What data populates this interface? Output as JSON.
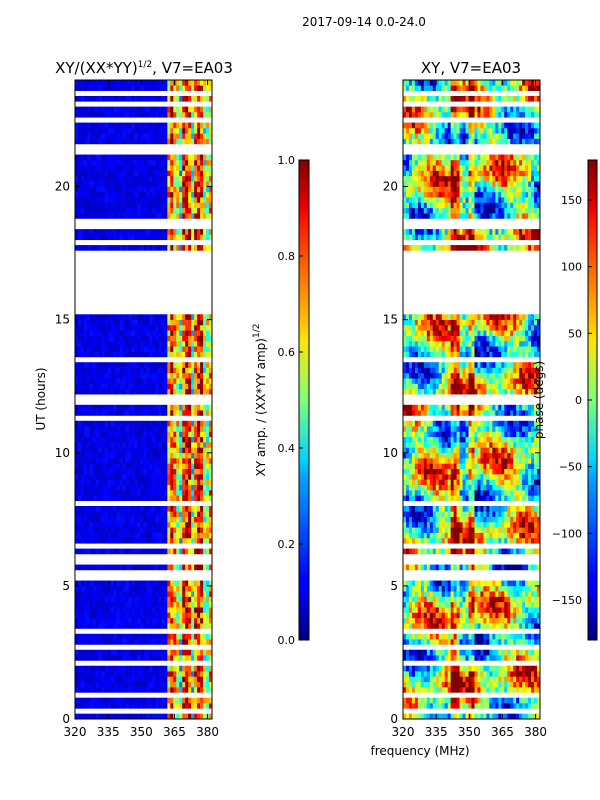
{
  "figure": {
    "suptitle": "2017-09-14 0.0-24.0",
    "xlabel": "frequency (MHz)",
    "ylabel": "UT (hours)"
  },
  "chart_data": [
    {
      "type": "heatmap",
      "title_main": "XY/(XX*YY)",
      "title_sup": "1/2",
      "title_tail": ", V7=EA03",
      "xlim": [
        320,
        382
      ],
      "ylim": [
        0,
        24
      ],
      "x_ticks": [
        320,
        335,
        350,
        365,
        380
      ],
      "y_ticks": [
        0,
        5,
        10,
        15,
        20
      ],
      "variable": "amplitude",
      "description": "Mostly low amplitude (~0.05-0.15) below 360 MHz; high, banded amplitude (0.3-1.0) between 362 and 382 MHz; white rows are flagged times",
      "colorbar": {
        "label_main": "XY amp. / (XX*YY amp)",
        "label_sup": "1/2",
        "range": [
          0.0,
          1.0
        ],
        "ticks": [
          "0.0",
          "0.2",
          "0.4",
          "0.6",
          "0.8",
          "1.0"
        ],
        "tick_values": [
          0.0,
          0.2,
          0.4,
          0.6,
          0.8,
          1.0
        ]
      },
      "flagged_hours": [
        [
          0.2,
          0.35
        ],
        [
          0.75,
          1.1
        ],
        [
          1.55,
          1.62
        ],
        [
          2.1,
          2.16
        ],
        [
          2.7,
          2.76
        ],
        [
          3.3,
          3.36
        ],
        [
          3.55,
          3.6
        ],
        [
          4.2,
          4.26
        ],
        [
          4.6,
          4.66
        ],
        [
          5.2,
          5.55
        ],
        [
          5.85,
          5.92
        ],
        [
          6.1,
          6.2
        ],
        [
          6.5,
          6.58
        ],
        [
          7.0,
          7.08
        ],
        [
          7.8,
          7.86
        ],
        [
          8.0,
          8.25
        ],
        [
          8.6,
          8.66
        ],
        [
          11.3,
          11.36
        ],
        [
          11.85,
          12.0
        ],
        [
          12.1,
          12.16
        ],
        [
          12.35,
          12.45
        ],
        [
          13.5,
          13.56
        ],
        [
          14.8,
          14.86
        ],
        [
          15.25,
          16.6
        ],
        [
          16.7,
          17.6
        ],
        [
          17.75,
          18.1
        ],
        [
          18.4,
          18.8
        ],
        [
          19.0,
          19.06
        ],
        [
          19.6,
          19.66
        ],
        [
          20.8,
          20.86
        ],
        [
          21.0,
          21.1
        ],
        [
          21.3,
          21.36
        ],
        [
          21.5,
          21.56
        ],
        [
          21.75,
          21.81
        ],
        [
          22.4,
          22.55
        ],
        [
          23.1,
          23.16
        ],
        [
          23.5,
          23.56
        ]
      ]
    },
    {
      "type": "heatmap",
      "title": "XY, V7=EA03",
      "xlim": [
        320,
        382
      ],
      "ylim": [
        0,
        24
      ],
      "x_ticks": [
        320,
        335,
        350,
        365,
        380
      ],
      "y_ticks": [
        0,
        5,
        10,
        15,
        20
      ],
      "variable": "phase",
      "description": "Noisy phase (-180 to 180 deg) varying with frequency and time; same flagged rows as amplitude panel",
      "colorbar": {
        "label": "phase (degs)",
        "range": [
          -180,
          180
        ],
        "ticks": [
          "150",
          "100",
          "50",
          "0",
          "−50",
          "−100",
          "−150"
        ],
        "tick_values": [
          150,
          100,
          50,
          0,
          -50,
          -100,
          -150
        ]
      }
    }
  ],
  "colors": {
    "jet_low": "#00007f",
    "jet_mid": "#7fff7f",
    "jet_high": "#7f0000",
    "background": "#ffffff"
  }
}
